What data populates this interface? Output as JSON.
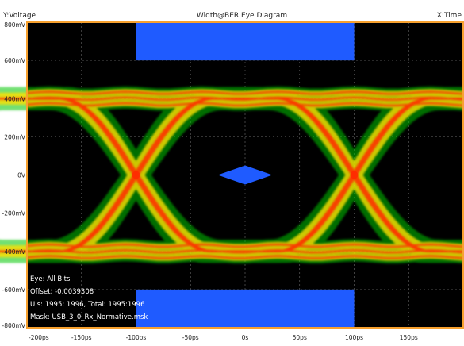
{
  "header": {
    "left_label": "Y:Voltage",
    "center_title": "Width@BER Eye Diagram",
    "right_label": "X:Time"
  },
  "info": {
    "line1": "Eye: All Bits",
    "line2": "Offset: -0.0039308",
    "line3": "UIs: 1995; 1996, Total: 1995:1996",
    "line4": "Mask: USB_3_0_Rx_Normative.msk"
  },
  "colors": {
    "frame": "#f7a12f",
    "plot_background": "#000000",
    "grid": "#6a6a6a",
    "mask": "#1f5bff",
    "label_text": "#ffffff",
    "eye_cold": "#00c800",
    "eye_warm": "#ffe000",
    "eye_hot": "#ff2a00"
  },
  "chart_data": {
    "type": "eye-diagram",
    "xlabel": "X:Time",
    "ylabel": "Y:Voltage",
    "xlim": [
      -200,
      200
    ],
    "ylim": [
      -800,
      800
    ],
    "x_ticks": [
      "-200ps",
      "-150ps",
      "-100ps",
      "-50ps",
      "0s",
      "50ps",
      "100ps",
      "150ps"
    ],
    "x_tick_values": [
      -200,
      -150,
      -100,
      -50,
      0,
      50,
      100,
      150
    ],
    "y_ticks": [
      "-800mV",
      "-600mV",
      "-400mV",
      "-200mV",
      "0V",
      "200mV",
      "400mV",
      "600mV",
      "800mV"
    ],
    "y_tick_values": [
      -800,
      -600,
      -400,
      -200,
      0,
      200,
      400,
      600,
      800
    ],
    "grid": true,
    "eye": {
      "unit_interval_ps": 200,
      "crossing_times_ps": [
        -100,
        100
      ],
      "crossing_voltage_mV": 0,
      "level_high_mV": 400,
      "level_low_mV": -400,
      "level_spread_mV": 60
    },
    "masks": [
      {
        "name": "upper",
        "t_start_ps": -100,
        "t_end_ps": 100,
        "v_bottom_mV": 600,
        "v_top_mV": 800
      },
      {
        "name": "lower",
        "t_start_ps": -100,
        "t_end_ps": 100,
        "v_bottom_mV": -800,
        "v_top_mV": -600
      },
      {
        "name": "center",
        "points": [
          [
            -25,
            0
          ],
          [
            0,
            50
          ],
          [
            25,
            0
          ],
          [
            0,
            -50
          ]
        ]
      }
    ]
  }
}
